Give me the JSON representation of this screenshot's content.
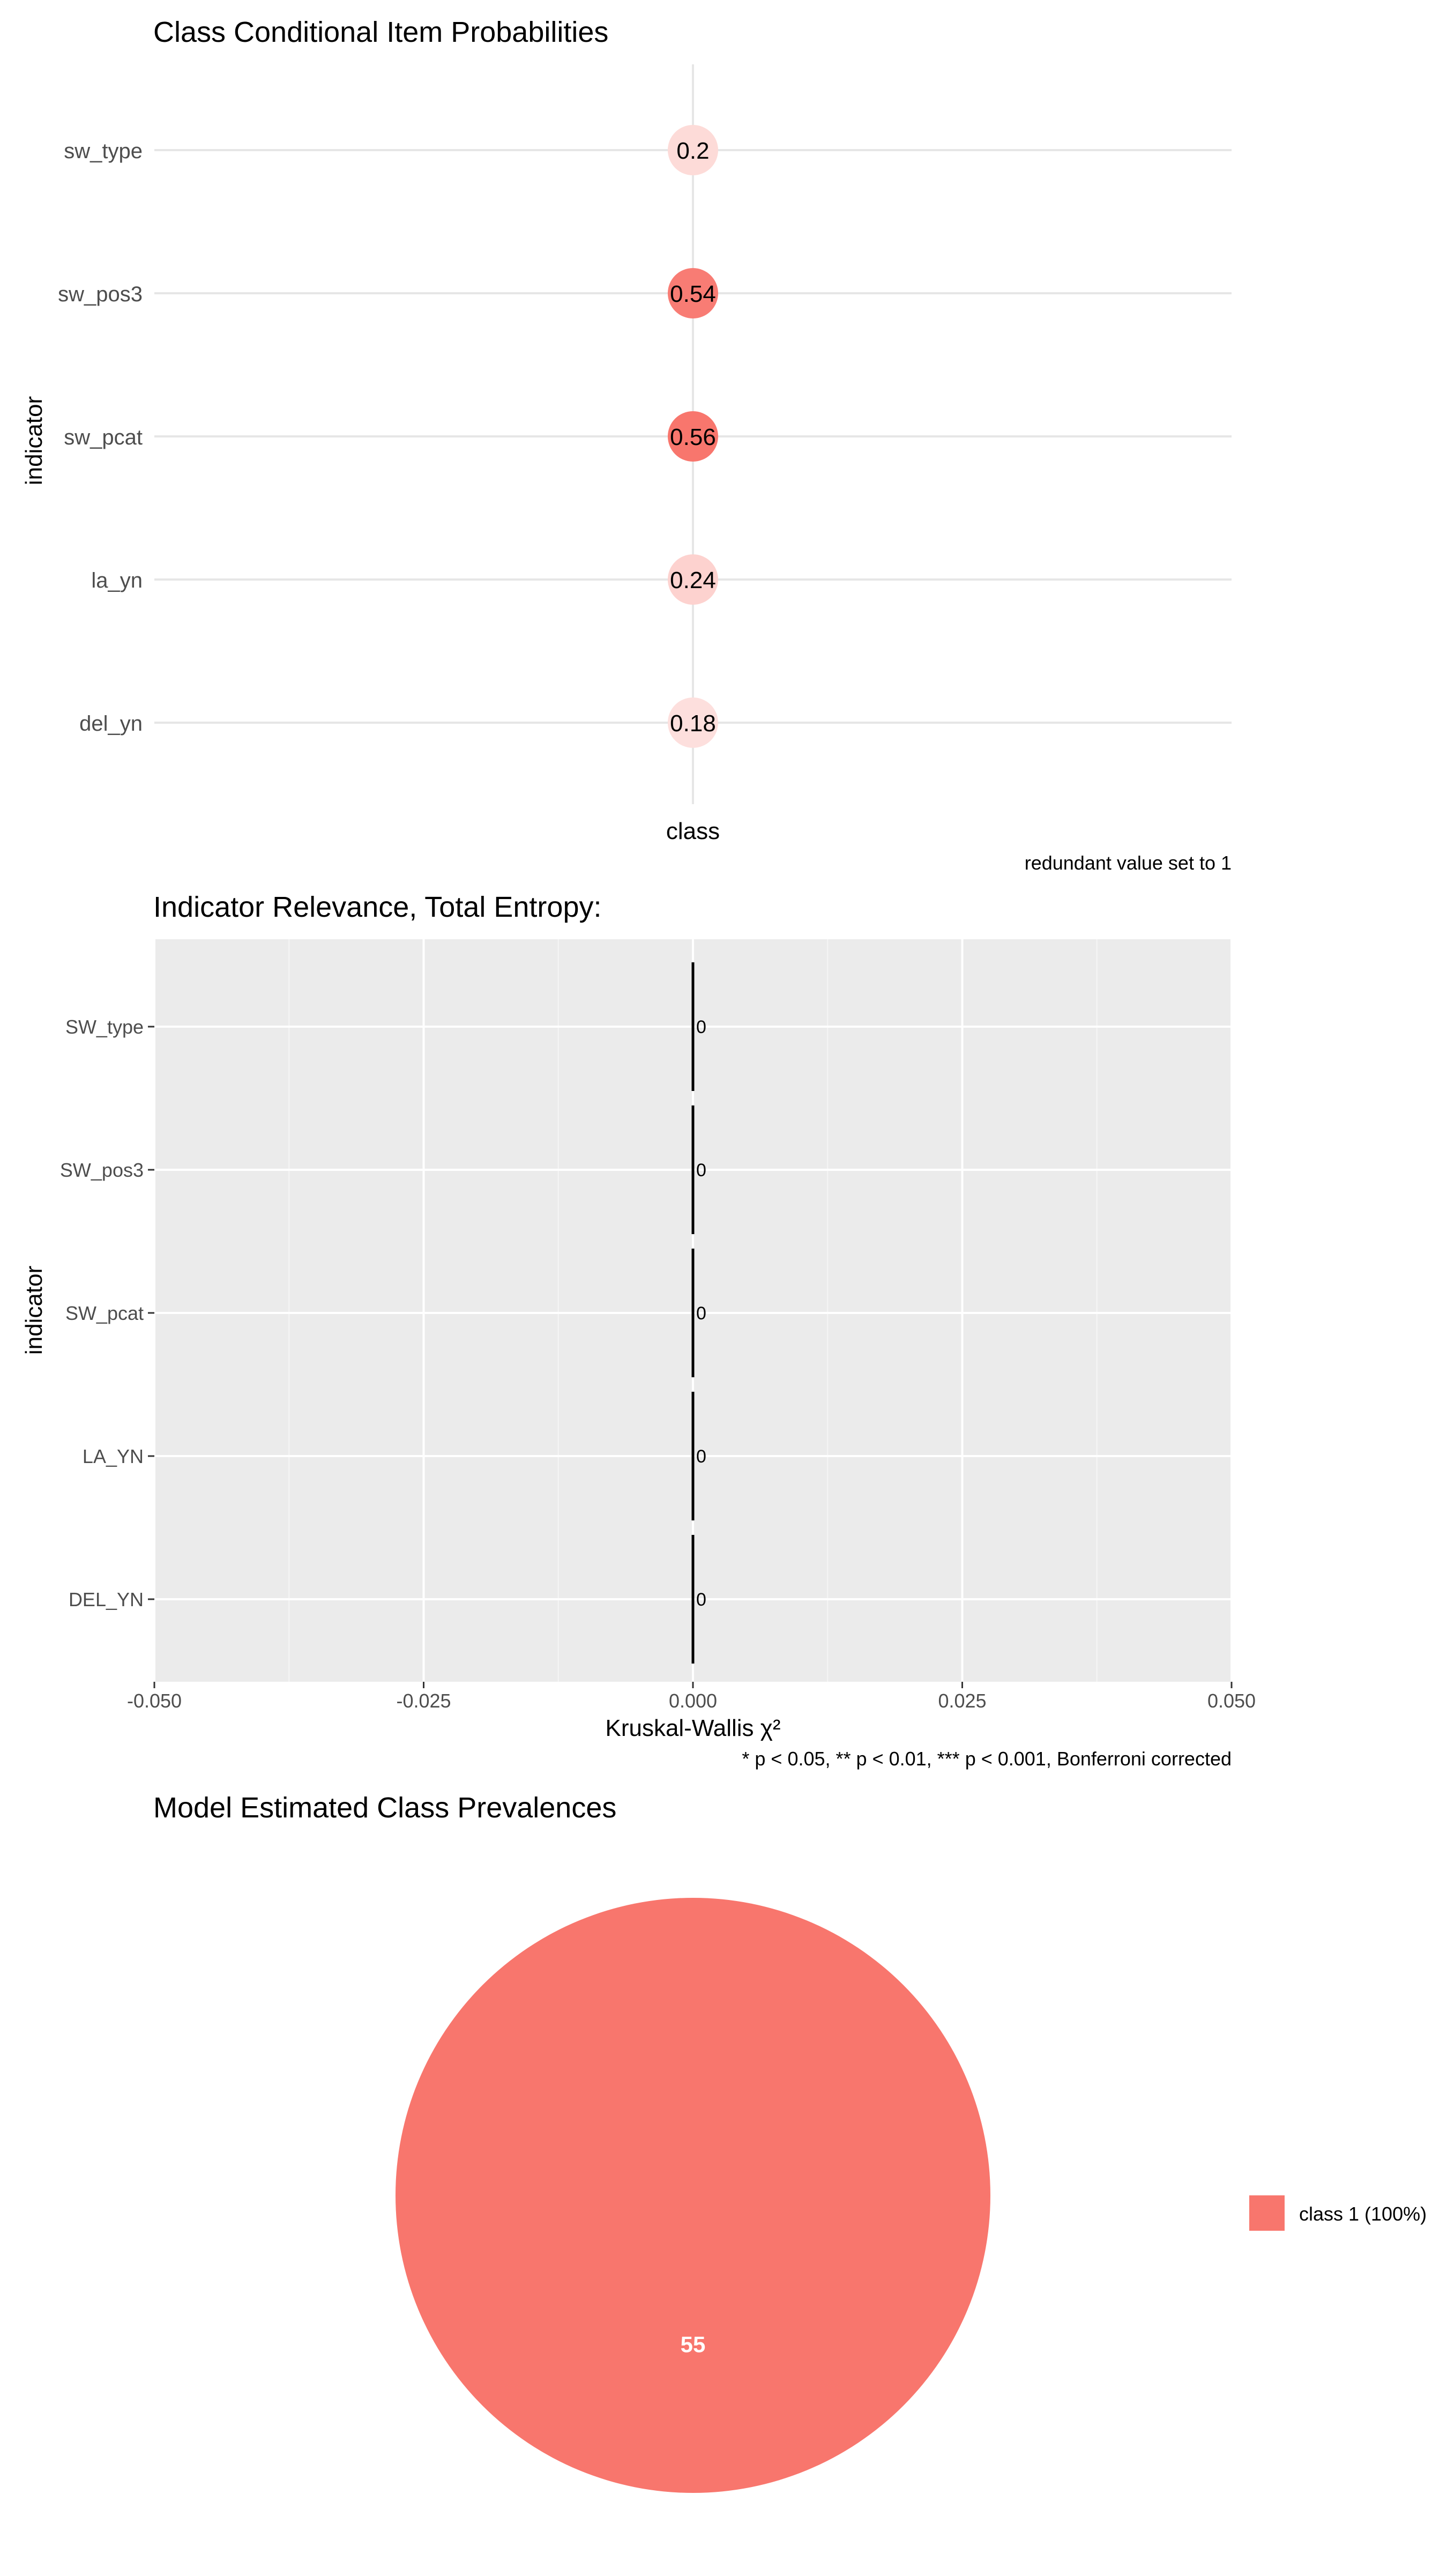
{
  "chart_data": [
    {
      "type": "dot",
      "title": "Class Conditional Item Probabilities",
      "ylabel": "indicator",
      "xlabel": "",
      "x_categories": [
        "class"
      ],
      "y_categories": [
        "sw_type",
        "sw_pos3",
        "sw_pcat",
        "la_yn",
        "del_yn"
      ],
      "values": [
        0.2,
        0.54,
        0.56,
        0.24,
        0.18
      ],
      "value_labels": [
        "0.2",
        "0.54",
        "0.56",
        "0.24",
        "0.18"
      ],
      "caption": "redundant value set to 1",
      "point_color": "#F8766D",
      "fill_scale": [
        0,
        1
      ],
      "grid": true
    },
    {
      "type": "bar",
      "orientation": "horizontal",
      "title": "Indicator Relevance, Total Entropy:",
      "ylabel": "indicator",
      "xlabel": "Kruskal-Wallis χ²",
      "categories": [
        "SW_type",
        "SW_pos3",
        "SW_pcat",
        "LA_YN",
        "DEL_YN"
      ],
      "values": [
        0,
        0,
        0,
        0,
        0
      ],
      "value_labels": [
        "0",
        "0",
        "0",
        "0",
        "0"
      ],
      "xlim": [
        -0.05,
        0.05
      ],
      "x_ticks": [
        -0.05,
        -0.025,
        0.0,
        0.025,
        0.05
      ],
      "x_tick_labels": [
        "-0.050",
        "-0.025",
        "0.000",
        "0.025",
        "0.050"
      ],
      "caption": "* p < 0.05, **  p < 0.01, *** p < 0.001, Bonferroni corrected",
      "panel_color": "#EBEBEB",
      "grid": true
    },
    {
      "type": "pie",
      "title": "Model Estimated Class Prevalences",
      "slices": [
        {
          "label": "class 1 (100%)",
          "value": 55,
          "value_label": "55",
          "color": "#F8766D"
        }
      ],
      "legend_position": "right"
    }
  ]
}
